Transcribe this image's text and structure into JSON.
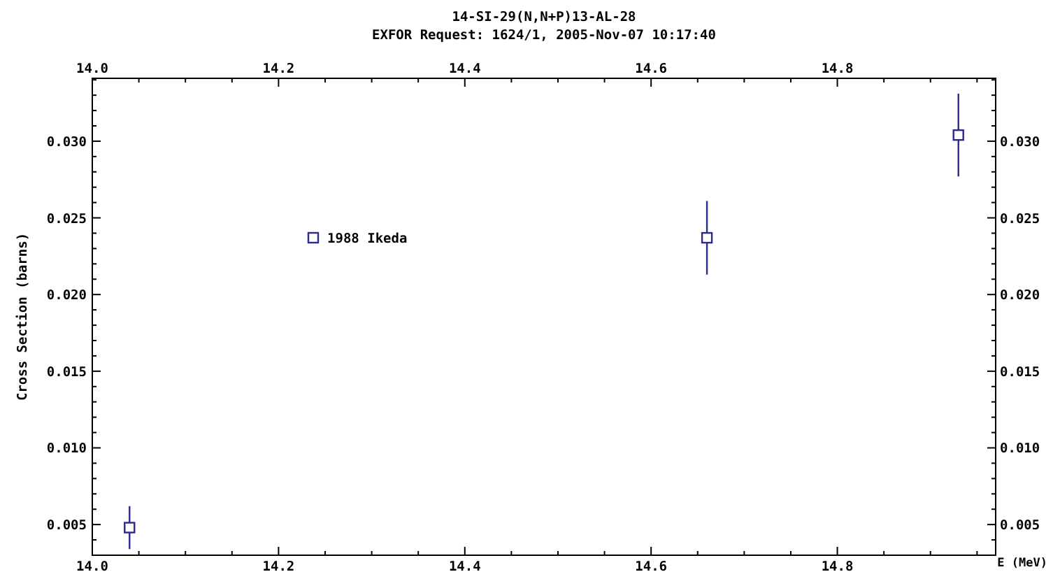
{
  "chart_data": {
    "type": "scatter",
    "title": "14-SI-29(N,N+P)13-AL-28",
    "subtitle": "EXFOR Request: 1624/1, 2005-Nov-07 10:17:40",
    "xlabel": "E (MeV)",
    "ylabel": "Cross Section (barns)",
    "x": [
      14.04,
      14.66,
      14.93
    ],
    "series": [
      {
        "name": "1988 Ikeda",
        "color": "#2a2a8c",
        "values": [
          0.0048,
          0.0237,
          0.0304
        ],
        "errors": [
          0.0014,
          0.0024,
          0.0027
        ]
      }
    ],
    "xlim": [
      14.0,
      14.97
    ],
    "ylim": [
      0.003,
      0.0341
    ],
    "x2lim": [
      14.0,
      14.97
    ],
    "y2lim": [
      0.003,
      0.0341
    ],
    "xticks": [
      {
        "value": 14.0,
        "label": "14.0"
      },
      {
        "value": 14.05,
        "label": null
      },
      {
        "value": 14.1,
        "label": null
      },
      {
        "value": 14.15,
        "label": null
      },
      {
        "value": 14.2,
        "label": "14.2"
      },
      {
        "value": 14.25,
        "label": null
      },
      {
        "value": 14.3,
        "label": null
      },
      {
        "value": 14.35,
        "label": null
      },
      {
        "value": 14.4,
        "label": "14.4"
      },
      {
        "value": 14.45,
        "label": null
      },
      {
        "value": 14.5,
        "label": null
      },
      {
        "value": 14.55,
        "label": null
      },
      {
        "value": 14.6,
        "label": "14.6"
      },
      {
        "value": 14.65,
        "label": null
      },
      {
        "value": 14.7,
        "label": null
      },
      {
        "value": 14.75,
        "label": null
      },
      {
        "value": 14.8,
        "label": "14.8"
      },
      {
        "value": 14.85,
        "label": null
      },
      {
        "value": 14.9,
        "label": null
      },
      {
        "value": 14.95,
        "label": null
      }
    ],
    "x2ticks": [
      {
        "value": 14.0,
        "label": "14.0"
      },
      {
        "value": 14.05,
        "label": null
      },
      {
        "value": 14.1,
        "label": null
      },
      {
        "value": 14.15,
        "label": null
      },
      {
        "value": 14.2,
        "label": "14.2"
      },
      {
        "value": 14.25,
        "label": null
      },
      {
        "value": 14.3,
        "label": null
      },
      {
        "value": 14.35,
        "label": null
      },
      {
        "value": 14.4,
        "label": "14.4"
      },
      {
        "value": 14.45,
        "label": null
      },
      {
        "value": 14.5,
        "label": null
      },
      {
        "value": 14.55,
        "label": null
      },
      {
        "value": 14.6,
        "label": "14.6"
      },
      {
        "value": 14.65,
        "label": null
      },
      {
        "value": 14.7,
        "label": null
      },
      {
        "value": 14.75,
        "label": null
      },
      {
        "value": 14.8,
        "label": "14.8"
      },
      {
        "value": 14.85,
        "label": null
      },
      {
        "value": 14.9,
        "label": null
      },
      {
        "value": 14.95,
        "label": null
      }
    ],
    "yticks": [
      {
        "value": 0.004,
        "label": null
      },
      {
        "value": 0.005,
        "label": "0.005"
      },
      {
        "value": 0.006,
        "label": null
      },
      {
        "value": 0.007,
        "label": null
      },
      {
        "value": 0.008,
        "label": null
      },
      {
        "value": 0.009,
        "label": null
      },
      {
        "value": 0.01,
        "label": "0.010"
      },
      {
        "value": 0.011,
        "label": null
      },
      {
        "value": 0.012,
        "label": null
      },
      {
        "value": 0.013,
        "label": null
      },
      {
        "value": 0.014,
        "label": null
      },
      {
        "value": 0.015,
        "label": "0.015"
      },
      {
        "value": 0.016,
        "label": null
      },
      {
        "value": 0.017,
        "label": null
      },
      {
        "value": 0.018,
        "label": null
      },
      {
        "value": 0.019,
        "label": null
      },
      {
        "value": 0.02,
        "label": "0.020"
      },
      {
        "value": 0.021,
        "label": null
      },
      {
        "value": 0.022,
        "label": null
      },
      {
        "value": 0.023,
        "label": null
      },
      {
        "value": 0.024,
        "label": null
      },
      {
        "value": 0.025,
        "label": "0.025"
      },
      {
        "value": 0.026,
        "label": null
      },
      {
        "value": 0.027,
        "label": null
      },
      {
        "value": 0.028,
        "label": null
      },
      {
        "value": 0.029,
        "label": null
      },
      {
        "value": 0.03,
        "label": "0.030"
      },
      {
        "value": 0.031,
        "label": null
      },
      {
        "value": 0.032,
        "label": null
      },
      {
        "value": 0.033,
        "label": null
      },
      {
        "value": 0.034,
        "label": null
      }
    ],
    "y2ticks": [
      {
        "value": 0.004,
        "label": null
      },
      {
        "value": 0.005,
        "label": "0.005"
      },
      {
        "value": 0.006,
        "label": null
      },
      {
        "value": 0.007,
        "label": null
      },
      {
        "value": 0.008,
        "label": null
      },
      {
        "value": 0.009,
        "label": null
      },
      {
        "value": 0.01,
        "label": "0.010"
      },
      {
        "value": 0.011,
        "label": null
      },
      {
        "value": 0.012,
        "label": null
      },
      {
        "value": 0.013,
        "label": null
      },
      {
        "value": 0.014,
        "label": null
      },
      {
        "value": 0.015,
        "label": "0.015"
      },
      {
        "value": 0.016,
        "label": null
      },
      {
        "value": 0.017,
        "label": null
      },
      {
        "value": 0.018,
        "label": null
      },
      {
        "value": 0.019,
        "label": null
      },
      {
        "value": 0.02,
        "label": "0.020"
      },
      {
        "value": 0.021,
        "label": null
      },
      {
        "value": 0.022,
        "label": null
      },
      {
        "value": 0.023,
        "label": null
      },
      {
        "value": 0.024,
        "label": null
      },
      {
        "value": 0.025,
        "label": "0.025"
      },
      {
        "value": 0.026,
        "label": null
      },
      {
        "value": 0.027,
        "label": null
      },
      {
        "value": 0.028,
        "label": null
      },
      {
        "value": 0.029,
        "label": null
      },
      {
        "value": 0.03,
        "label": "0.030"
      },
      {
        "value": 0.031,
        "label": null
      },
      {
        "value": 0.032,
        "label": null
      },
      {
        "value": 0.033,
        "label": null
      },
      {
        "value": 0.034,
        "label": null
      }
    ],
    "marker": "square",
    "grid": false,
    "legend": "top left"
  }
}
